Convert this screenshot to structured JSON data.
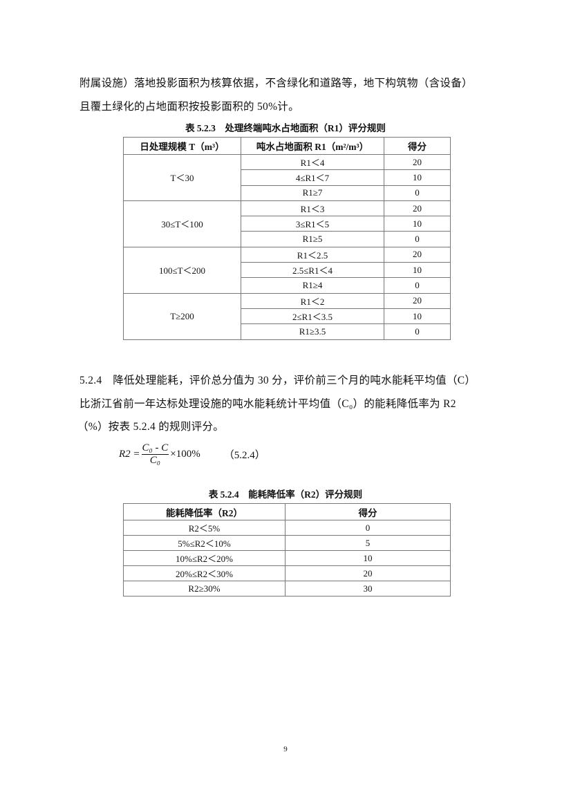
{
  "paragraph1": {
    "lines": [
      "附属设施）落地投影面积为核算依据，不含绿化和道路等，地下构筑物（含设备）",
      "且覆土绿化的占地面积按投影面积的 50%计。"
    ]
  },
  "table1": {
    "caption": "表 5.2.3　处理终端吨水占地面积（R1）评分规则",
    "headers": [
      "日处理规模 T（m³）",
      "吨水占地面积 R1（m²/m³）",
      "得分"
    ],
    "groups": [
      {
        "scale": "T＜30",
        "rows": [
          [
            "R1＜4",
            "20"
          ],
          [
            "4≤R1＜7",
            "10"
          ],
          [
            "R1≥7",
            "0"
          ]
        ]
      },
      {
        "scale": "30≤T＜100",
        "rows": [
          [
            "R1＜3",
            "20"
          ],
          [
            "3≤R1＜5",
            "10"
          ],
          [
            "R1≥5",
            "0"
          ]
        ]
      },
      {
        "scale": "100≤T＜200",
        "rows": [
          [
            "R1＜2.5",
            "20"
          ],
          [
            "2.5≤R1＜4",
            "10"
          ],
          [
            "R1≥4",
            "0"
          ]
        ]
      },
      {
        "scale": "T≥200",
        "rows": [
          [
            "R1＜2",
            "20"
          ],
          [
            "2≤R1＜3.5",
            "10"
          ],
          [
            "R1≥3.5",
            "0"
          ]
        ]
      }
    ]
  },
  "paragraph2": {
    "lines": [
      "5.2.4　降低处理能耗，评价总分值为 30 分，评价前三个月的吨水能耗平均值（C）",
      "比浙江省前一年达标处理设施的吨水能耗统计平均值（C₀）的能耗降低率为 R2",
      "（%）按表 5.2.4 的规则评分。"
    ]
  },
  "formula": {
    "lhs": "R2 =",
    "numerator": "C₀ - C",
    "denominator": "C₀",
    "rhs": "×100%",
    "number": "（5.2.4）"
  },
  "table2": {
    "caption": "表 5.2.4　能耗降低率（R2）评分规则",
    "headers": [
      "能耗降低率（R2）",
      "得分"
    ],
    "rows": [
      [
        "R2＜5%",
        "0"
      ],
      [
        "5%≤R2＜10%",
        "5"
      ],
      [
        "10%≤R2＜20%",
        "10"
      ],
      [
        "20%≤R2＜30%",
        "20"
      ],
      [
        "R2≥30%",
        "30"
      ]
    ]
  },
  "page_number": "9"
}
